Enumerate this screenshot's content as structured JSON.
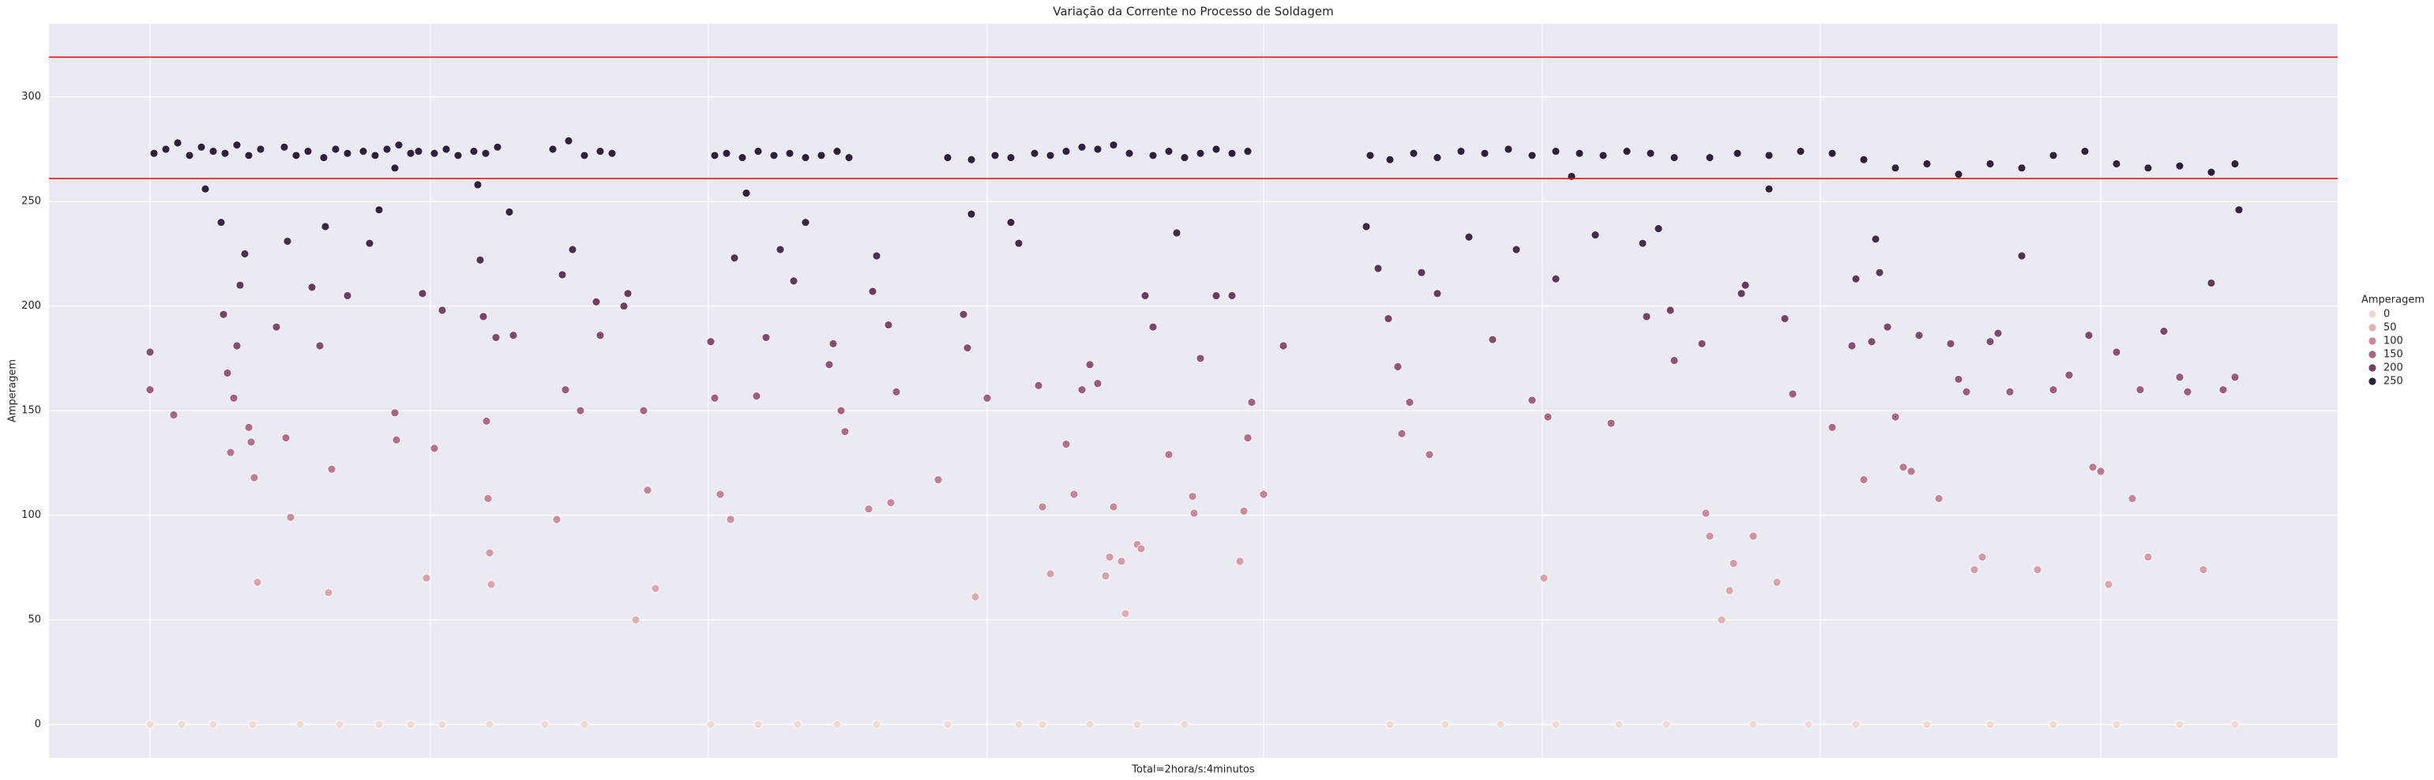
{
  "chart_data": {
    "type": "scatter",
    "title": "Variação da Corrente no Processo de Soldagem",
    "x_label": "Total=2hora/s:4minutos",
    "y_label": "Amperagem",
    "xlim": [
      62,
      2960
    ],
    "xticks": [
      190,
      545,
      897,
      1250,
      1600,
      1953,
      2305,
      2660
    ],
    "ylim": [
      -16,
      335
    ],
    "yticks": [
      0,
      50,
      100,
      150,
      200,
      250,
      300
    ],
    "grid": true,
    "hlines": [
      {
        "value": 319,
        "color": "#ff0000"
      },
      {
        "value": 261,
        "color": "#ff0000"
      }
    ],
    "legend": {
      "title": "Amperagem",
      "position": "right",
      "values": [
        0,
        50,
        100,
        150,
        200,
        250
      ],
      "colors": [
        "#f2d8d3",
        "#e3b0b0",
        "#cd8a9c",
        "#a86283",
        "#733e67",
        "#2f1f40"
      ]
    },
    "x": [
      195,
      210,
      225,
      240,
      255,
      270,
      285,
      300,
      315,
      330,
      360,
      375,
      390,
      410,
      425,
      440,
      460,
      475,
      490,
      505,
      520,
      530,
      550,
      565,
      580,
      600,
      615,
      630,
      700,
      720,
      740,
      760,
      775,
      905,
      920,
      940,
      960,
      980,
      1000,
      1020,
      1040,
      1060,
      1075,
      1200,
      1230,
      1260,
      1280,
      1310,
      1330,
      1350,
      1370,
      1390,
      1410,
      1430,
      1460,
      1480,
      1500,
      1520,
      1540,
      1560,
      1580,
      1735,
      1760,
      1790,
      1820,
      1850,
      1880,
      1910,
      1940,
      1970,
      2000,
      2030,
      2060,
      2090,
      2120,
      2165,
      2200,
      2240,
      2280,
      2320,
      2360,
      2400,
      2440,
      2480,
      2520,
      2560,
      2600,
      2640,
      2680,
      2720,
      2760,
      2800,
      2830,
      190,
      230,
      270,
      320,
      380,
      430,
      480,
      520,
      560,
      620,
      690,
      740,
      900,
      960,
      1010,
      1060,
      1110,
      1200,
      1290,
      1320,
      1380,
      1440,
      1500,
      1760,
      1830,
      1900,
      1970,
      2050,
      2110,
      2220,
      2290,
      2350,
      2440,
      2520,
      2600,
      2680,
      2760,
      2830,
      190,
      190,
      220,
      260,
      280,
      283,
      288,
      292,
      296,
      300,
      304,
      310,
      315,
      318,
      322,
      326,
      350,
      362,
      364,
      368,
      395,
      405,
      412,
      420,
      416,
      440,
      468,
      480,
      500,
      500,
      502,
      535,
      540,
      550,
      560,
      605,
      608,
      612,
      616,
      618,
      620,
      622,
      628,
      645,
      650,
      705,
      712,
      716,
      725,
      735,
      755,
      760,
      790,
      795,
      805,
      815,
      820,
      830,
      900,
      905,
      912,
      925,
      930,
      945,
      958,
      970,
      988,
      1005,
      1020,
      1050,
      1055,
      1065,
      1070,
      1100,
      1105,
      1110,
      1125,
      1128,
      1135,
      1188,
      1220,
      1225,
      1230,
      1235,
      1250,
      1280,
      1290,
      1315,
      1320,
      1330,
      1350,
      1360,
      1370,
      1380,
      1390,
      1400,
      1405,
      1410,
      1420,
      1425,
      1440,
      1445,
      1450,
      1460,
      1480,
      1490,
      1510,
      1512,
      1520,
      1540,
      1560,
      1570,
      1575,
      1580,
      1585,
      1600,
      1625,
      1730,
      1745,
      1758,
      1770,
      1775,
      1785,
      1800,
      1810,
      1820,
      1860,
      1890,
      1920,
      1940,
      1955,
      1960,
      1970,
      1990,
      2020,
      2040,
      2080,
      2085,
      2100,
      2115,
      2120,
      2155,
      2160,
      2165,
      2180,
      2190,
      2195,
      2205,
      2210,
      2220,
      2240,
      2250,
      2260,
      2270,
      2320,
      2345,
      2350,
      2360,
      2370,
      2375,
      2380,
      2390,
      2400,
      2410,
      2420,
      2430,
      2455,
      2470,
      2480,
      2490,
      2500,
      2510,
      2520,
      2530,
      2545,
      2560,
      2580,
      2600,
      2620,
      2645,
      2650,
      2660,
      2670,
      2680,
      2700,
      2710,
      2720,
      2740,
      2760,
      2770,
      2790,
      2800,
      2815,
      2830,
      2835
    ],
    "values": [
      273,
      275,
      278,
      272,
      276,
      274,
      273,
      277,
      272,
      275,
      276,
      272,
      274,
      271,
      275,
      273,
      274,
      272,
      275,
      277,
      273,
      274,
      273,
      275,
      272,
      274,
      273,
      276,
      275,
      279,
      272,
      274,
      273,
      272,
      273,
      271,
      274,
      272,
      273,
      271,
      272,
      274,
      271,
      271,
      270,
      272,
      271,
      273,
      272,
      274,
      276,
      275,
      277,
      273,
      272,
      274,
      271,
      273,
      275,
      273,
      274,
      272,
      270,
      273,
      271,
      274,
      273,
      275,
      272,
      274,
      273,
      272,
      274,
      273,
      271,
      271,
      273,
      272,
      274,
      273,
      270,
      266,
      268,
      263,
      268,
      266,
      272,
      274,
      268,
      266,
      267,
      264,
      268,
      0,
      0,
      0,
      0,
      0,
      0,
      0,
      0,
      0,
      0,
      0,
      0,
      0,
      0,
      0,
      0,
      0,
      0,
      0,
      0,
      0,
      0,
      0,
      0,
      0,
      0,
      0,
      0,
      0,
      0,
      0,
      0,
      0,
      0,
      0,
      0,
      0,
      0,
      178,
      160,
      148,
      256,
      240,
      196,
      168,
      130,
      156,
      181,
      210,
      225,
      142,
      135,
      118,
      68,
      190,
      137,
      231,
      99,
      209,
      181,
      238,
      122,
      63,
      205,
      230,
      246,
      266,
      149,
      136,
      206,
      70,
      132,
      198,
      258,
      222,
      195,
      145,
      108,
      82,
      67,
      185,
      245,
      186,
      98,
      215,
      160,
      227,
      150,
      202,
      186,
      200,
      206,
      50,
      150,
      112,
      65,
      183,
      156,
      110,
      98,
      223,
      254,
      157,
      185,
      227,
      212,
      240,
      172,
      182,
      150,
      140,
      103,
      207,
      224,
      191,
      106,
      159,
      117,
      196,
      180,
      244,
      61,
      156,
      240,
      230,
      162,
      104,
      72,
      134,
      110,
      160,
      172,
      163,
      71,
      80,
      104,
      78,
      53,
      86,
      84,
      205,
      190,
      129,
      235,
      109,
      101,
      175,
      205,
      205,
      78,
      102,
      137,
      154,
      110,
      181,
      238,
      218,
      194,
      171,
      139,
      154,
      216,
      129,
      206,
      233,
      184,
      227,
      155,
      70,
      147,
      213,
      262,
      234,
      144,
      230,
      195,
      237,
      198,
      174,
      182,
      101,
      90,
      50,
      64,
      77,
      206,
      210,
      90,
      256,
      68,
      194,
      158,
      142,
      181,
      213,
      117,
      183,
      232,
      216,
      190,
      147,
      123,
      121,
      186,
      108,
      182,
      165,
      159,
      74,
      80,
      183,
      187,
      159,
      224,
      74,
      160,
      167,
      186,
      123,
      121,
      67,
      178,
      108,
      160,
      80,
      188,
      166,
      159,
      74,
      211,
      160,
      166,
      246
    ]
  }
}
